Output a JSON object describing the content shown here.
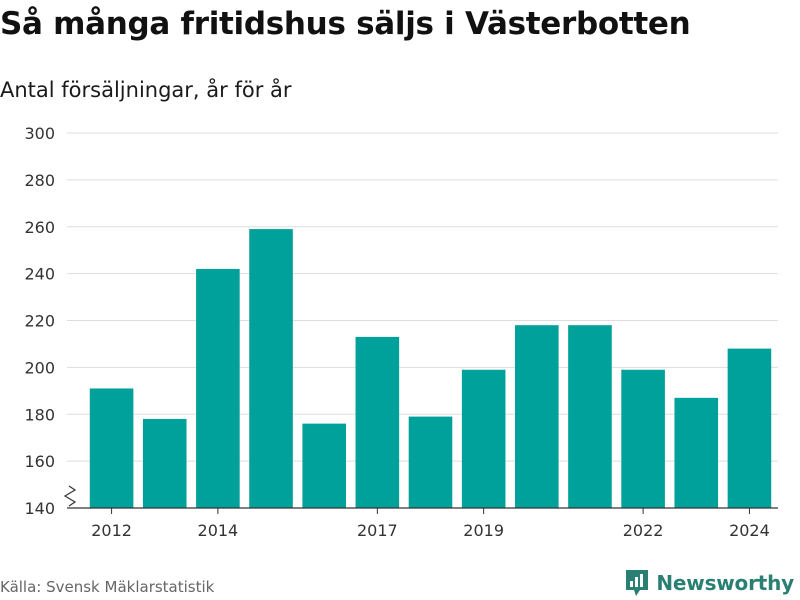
{
  "header": {
    "title": "Så många fritidshus säljs i Västerbotten",
    "subtitle": "Antal försäljningar, år för år"
  },
  "footer": {
    "source": "Källa: Svensk Mäklarstatistik",
    "brand": "Newsworthy",
    "brand_icon": "bar-chart-logo-icon"
  },
  "colors": {
    "bar": "#00a19a",
    "grid": "#dddddd",
    "axis": "#333333",
    "brand": "#2a7f73"
  },
  "chart_data": {
    "type": "bar",
    "x": [
      2012,
      2013,
      2014,
      2015,
      2016,
      2017,
      2018,
      2019,
      2020,
      2021,
      2022,
      2023,
      2024
    ],
    "values": [
      191,
      178,
      242,
      259,
      176,
      213,
      179,
      199,
      218,
      218,
      199,
      187,
      208
    ],
    "x_tick_labels": [
      "2012",
      "2014",
      "2017",
      "2019",
      "2022",
      "2024"
    ],
    "y_ticks": [
      140,
      160,
      180,
      200,
      220,
      240,
      260,
      280,
      300
    ],
    "ylim": [
      140,
      300
    ],
    "y_axis_break": true,
    "grid": true,
    "xlabel": "",
    "ylabel": ""
  }
}
